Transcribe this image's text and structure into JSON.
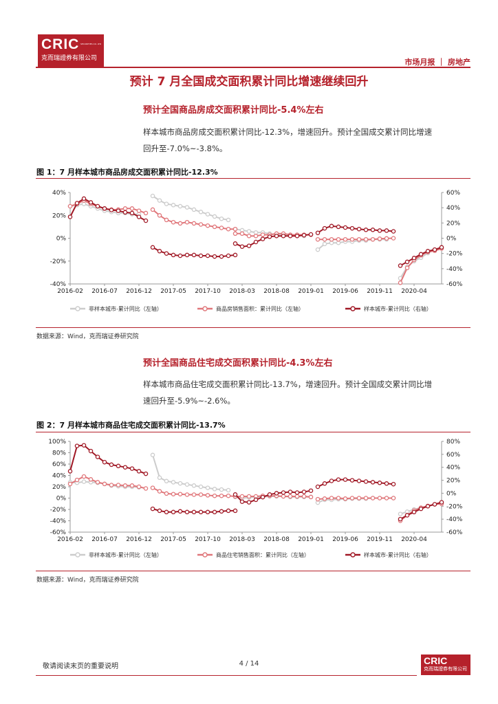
{
  "header": {
    "logo_text": "CRIC",
    "logo_subtext": "克而瑞證券有限公司",
    "logo_tiny": "SECURITIES CO. LTD",
    "section": "市场月报 ｜ 房地产"
  },
  "title": "预计 7 月全国成交面积累计同比增速继续回升",
  "section1": {
    "subhead": "预计全国商品房成交面积累计同比-5.4%左右",
    "para_line1": "样本城市商品房成交面积累计同比-12.3%，增速回升。预计全国成交累计同比增速",
    "para_line2": "回升至-7.0%~-3.8%。",
    "figure_label": "图 1：7 月样本城市商品房成交面积累计同比-12.3%",
    "source": "数据来源：Wind，克而瑞证券研究院"
  },
  "section2": {
    "subhead": "预计全国商品住宅成交面积累计同比-4.3%左右",
    "para_line1": "样本城市商品住宅成交面积累计同比-13.7%，增速回升。预计全国成交累计同比增",
    "para_line2": "速回升至-5.9%~-2.6%。",
    "figure_label": "图 2：7 月样本城市商品住宅成交面积累计同比-13.7%",
    "source": "数据来源：Wind，克而瑞证券研究院"
  },
  "chart_data": [
    {
      "type": "line",
      "x_labels": [
        "2016-02",
        "2016-07",
        "2016-12",
        "2017-05",
        "2017-10",
        "2018-03",
        "2018-08",
        "2019-01",
        "2019-06",
        "2019-11",
        "2020-04"
      ],
      "left_axis": {
        "min": -40,
        "max": 40,
        "ticks": [
          "40%",
          "20%",
          "0%",
          "-20%",
          "-40%"
        ]
      },
      "right_axis": {
        "min": -60,
        "max": 60,
        "ticks": [
          "60%",
          "40%",
          "20%",
          "0%",
          "-20%",
          "-40%",
          "-60%"
        ]
      },
      "series": [
        {
          "name": "非样本城市-累计同比（左轴）",
          "axis": "left",
          "color": "#cccccc",
          "segments": [
            {
              "start": 0,
              "values": [
                28,
                29,
                30,
                28,
                26,
                24,
                23,
                22,
                22,
                21,
                21
              ]
            },
            {
              "start": 12,
              "values": [
                37,
                33,
                30,
                29,
                28,
                27,
                25,
                23,
                21,
                19,
                17,
                16
              ]
            },
            {
              "start": 24,
              "values": [
                8,
                7,
                6,
                5,
                5,
                4,
                3,
                3,
                3,
                3,
                2
              ]
            },
            {
              "start": 36,
              "values": [
                -10,
                -5,
                -4,
                -4,
                -3,
                -3,
                -2,
                -2,
                -1,
                -1,
                -1
              ]
            },
            {
              "start": 48,
              "values": [
                -35,
                -25,
                -20,
                -17,
                -13,
                -10,
                -8
              ]
            }
          ]
        },
        {
          "name": "商品房销售面积：累计同比（左轴）",
          "axis": "left",
          "color": "#e0767a",
          "segments": [
            {
              "start": 0,
              "values": [
                28,
                30,
                33,
                30,
                28,
                26,
                25,
                25,
                26,
                26,
                24,
                22
              ]
            },
            {
              "start": 12,
              "values": [
                25,
                20,
                16,
                14,
                13,
                14,
                13,
                12,
                11,
                10,
                9,
                8,
                8
              ]
            },
            {
              "start": 24,
              "values": [
                4,
                4,
                2,
                2,
                3,
                3,
                4,
                4,
                3,
                3,
                3,
                3
              ]
            },
            {
              "start": 36,
              "values": [
                -1,
                -1,
                -1,
                -1,
                -1,
                -1,
                -1,
                -1,
                -1,
                -0.5,
                -0.2,
                0
              ]
            },
            {
              "start": 48,
              "values": [
                -39,
                -26,
                -19,
                -15,
                -12,
                -11,
                -9
              ]
            }
          ]
        },
        {
          "name": "样本城市-累计同比（右轴）",
          "axis": "right",
          "color": "#a01825",
          "segments": [
            {
              "start": 0,
              "values": [
                28,
                46,
                52,
                47,
                42,
                39,
                37,
                36,
                34,
                33,
                28,
                23
              ]
            },
            {
              "start": 12,
              "values": [
                -12,
                -17,
                -20,
                -22,
                -23,
                -22,
                -22,
                -23,
                -23,
                -24,
                -24,
                -23,
                -22
              ]
            },
            {
              "start": 24,
              "values": [
                -7,
                -11,
                -10,
                -5,
                -1,
                2,
                3,
                3,
                3,
                3,
                4,
                5
              ]
            },
            {
              "start": 36,
              "values": [
                7,
                13,
                16,
                15,
                14,
                13,
                12,
                11,
                11,
                10,
                10,
                9
              ]
            },
            {
              "start": 48,
              "values": [
                -36,
                -31,
                -26,
                -21,
                -17,
                -15,
                -12
              ]
            }
          ]
        }
      ]
    },
    {
      "type": "line",
      "x_labels": [
        "2016-02",
        "2016-07",
        "2016-12",
        "2017-05",
        "2017-10",
        "2018-03",
        "2018-08",
        "2019-01",
        "2019-06",
        "2019-11",
        "2020-04"
      ],
      "left_axis": {
        "min": -60,
        "max": 100,
        "ticks": [
          "100%",
          "80%",
          "60%",
          "40%",
          "20%",
          "0%",
          "-20%",
          "-40%",
          "-60%"
        ]
      },
      "right_axis": {
        "min": -60,
        "max": 80,
        "ticks": [
          "80%",
          "60%",
          "40%",
          "20%",
          "0%",
          "-20%",
          "-40%",
          "-60%"
        ]
      },
      "series": [
        {
          "name": "非样本城市-累计同比（左轴）",
          "axis": "left",
          "color": "#cccccc",
          "segments": [
            {
              "start": 0,
              "values": [
                28,
                27,
                29,
                28,
                27,
                25,
                22,
                21,
                20,
                20,
                19
              ]
            },
            {
              "start": 12,
              "values": [
                76,
                36,
                30,
                28,
                26,
                24,
                22,
                20,
                18,
                16,
                15,
                14
              ]
            },
            {
              "start": 24,
              "values": [
                2,
                0,
                1,
                2,
                2,
                3,
                3,
                3,
                2,
                2,
                2,
                2
              ]
            },
            {
              "start": 36,
              "values": [
                -8,
                -3,
                -3,
                -2,
                -2,
                -1,
                -1,
                -1,
                0,
                0,
                0,
                0
              ]
            },
            {
              "start": 48,
              "values": [
                -28,
                -24,
                -20,
                -17,
                -14,
                -11,
                -9
              ]
            }
          ]
        },
        {
          "name": "商品住宅销售面积：累计同比（左轴）",
          "axis": "left",
          "color": "#e0767a",
          "segments": [
            {
              "start": 0,
              "values": [
                25,
                32,
                38,
                33,
                28,
                25,
                23,
                23,
                22,
                22,
                20,
                17
              ]
            },
            {
              "start": 12,
              "values": [
                18,
                12,
                8,
                7,
                7,
                6,
                6,
                6,
                5,
                4,
                4,
                4,
                3
              ]
            },
            {
              "start": 24,
              "values": [
                3,
                3,
                3,
                3,
                4,
                4,
                4,
                3,
                3,
                3,
                3,
                2
              ]
            },
            {
              "start": 36,
              "values": [
                -2,
                -1,
                0,
                0,
                -1,
                0,
                0,
                0,
                0,
                0,
                0,
                0
              ]
            },
            {
              "start": 48,
              "values": [
                -40,
                -30,
                -22,
                -17,
                -14,
                -11,
                -10
              ]
            }
          ]
        },
        {
          "name": "样本城市-累计同比（右轴）",
          "axis": "right",
          "color": "#a01825",
          "segments": [
            {
              "start": 0,
              "values": [
                34,
                73,
                74,
                65,
                56,
                48,
                44,
                42,
                40,
                38,
                34,
                30
              ]
            },
            {
              "start": 12,
              "values": [
                -24,
                -27,
                -29,
                -29,
                -28,
                -29,
                -29,
                -29,
                -29,
                -29,
                -28,
                -27,
                -27
              ]
            },
            {
              "start": 24,
              "values": [
                -2,
                -13,
                -14,
                -10,
                -6,
                -2,
                0,
                1,
                2,
                1,
                2,
                4
              ]
            },
            {
              "start": 36,
              "values": [
                10,
                15,
                19,
                21,
                21,
                20,
                19,
                18,
                17,
                16,
                15,
                14
              ]
            },
            {
              "start": 48,
              "values": [
                -40,
                -34,
                -29,
                -24,
                -20,
                -17,
                -14
              ]
            }
          ]
        }
      ]
    }
  ],
  "footer": {
    "note": "敬请阅读末页的重要说明",
    "page": "4 / 14",
    "logo_text": "CRIC",
    "logo_subtext": "克而瑞證券有限公司"
  }
}
